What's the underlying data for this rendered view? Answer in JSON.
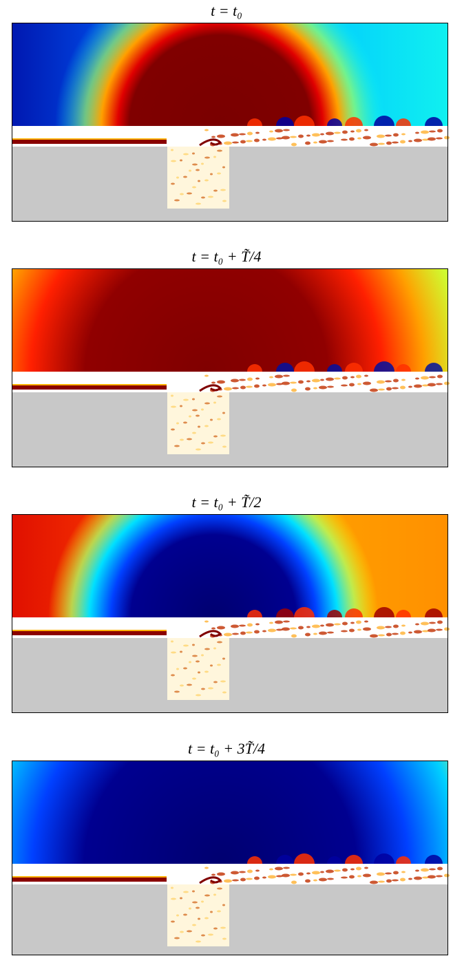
{
  "panels": [
    {
      "title": "t = t₀"
    },
    {
      "title": "t = t₀ + T̃/4"
    },
    {
      "title": "t = t₀ + T̃/2"
    },
    {
      "title": "t = t₀ + 3T̃/4"
    }
  ]
}
